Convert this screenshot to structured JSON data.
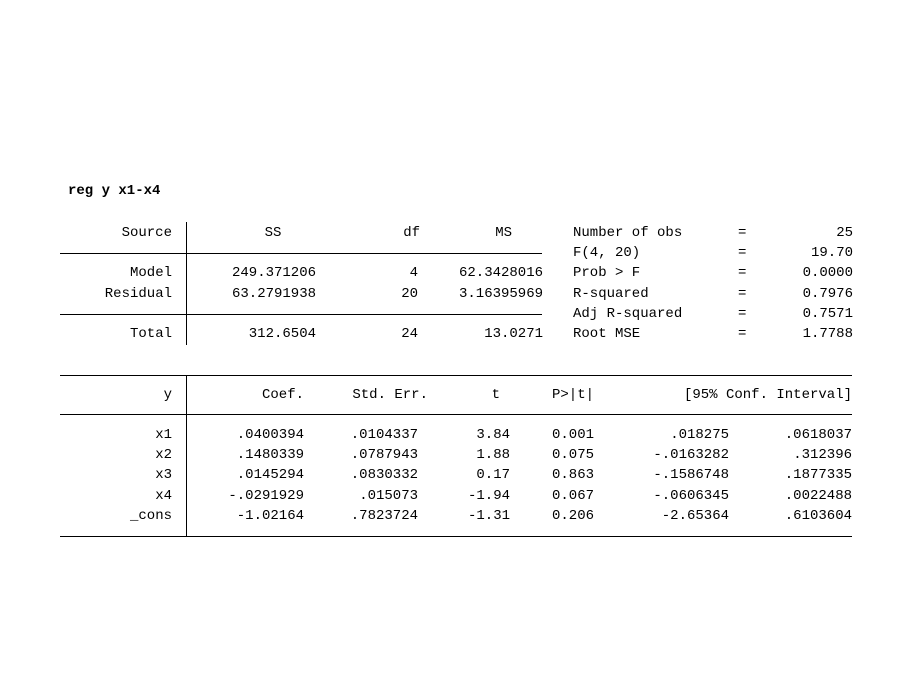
{
  "command": "reg y x1-x4",
  "anova": {
    "headers": {
      "source": "Source",
      "ss": "SS",
      "df": "df",
      "ms": "MS"
    },
    "rows": [
      {
        "source": "Model",
        "ss": "249.371206",
        "df": "4",
        "ms": "62.3428016"
      },
      {
        "source": "Residual",
        "ss": "63.2791938",
        "df": "20",
        "ms": "3.16395969"
      }
    ],
    "total": {
      "source": "Total",
      "ss": "312.6504",
      "df": "24",
      "ms": "13.0271"
    }
  },
  "stats": [
    {
      "label": "Number of obs",
      "eq": "=",
      "value": "25"
    },
    {
      "label": "F(4, 20)",
      "eq": "=",
      "value": "19.70"
    },
    {
      "label": "Prob > F",
      "eq": "=",
      "value": "0.0000"
    },
    {
      "label": "R-squared",
      "eq": "=",
      "value": "0.7976"
    },
    {
      "label": "Adj R-squared",
      "eq": "=",
      "value": "0.7571"
    },
    {
      "label": "Root MSE",
      "eq": "=",
      "value": "1.7788"
    }
  ],
  "coef": {
    "headers": {
      "var": "y",
      "coef": "Coef.",
      "se": "Std. Err.",
      "t": "t",
      "p": "P>|t|",
      "ci": "[95% Conf. Interval]"
    },
    "rows": [
      {
        "var": "x1",
        "coef": ".0400394",
        "se": ".0104337",
        "t": "3.84",
        "p": "0.001",
        "lo": ".018275",
        "hi": ".0618037"
      },
      {
        "var": "x2",
        "coef": ".1480339",
        "se": ".0787943",
        "t": "1.88",
        "p": "0.075",
        "lo": "-.0163282",
        "hi": ".312396"
      },
      {
        "var": "x3",
        "coef": ".0145294",
        "se": ".0830332",
        "t": "0.17",
        "p": "0.863",
        "lo": "-.1586748",
        "hi": ".1877335"
      },
      {
        "var": "x4",
        "coef": "-.0291929",
        "se": ".015073",
        "t": "-1.94",
        "p": "0.067",
        "lo": "-.0606345",
        "hi": ".0022488"
      },
      {
        "var": "_cons",
        "coef": "-1.02164",
        "se": ".7823724",
        "t": "-1.31",
        "p": "0.206",
        "lo": "-2.65364",
        "hi": ".6103604"
      }
    ]
  }
}
